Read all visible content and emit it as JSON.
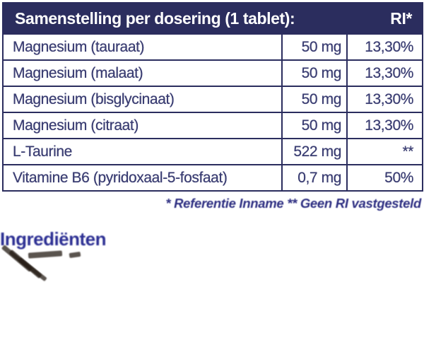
{
  "table": {
    "header": {
      "title": "Samenstelling per dosering (1 tablet):",
      "ri_label": "RI*"
    },
    "rows": [
      {
        "name": "Magnesium (tauraat)",
        "amount": "50 mg",
        "ri": "13,30%"
      },
      {
        "name": "Magnesium (malaat)",
        "amount": "50 mg",
        "ri": "13,30%"
      },
      {
        "name": "Magnesium (bisglycinaat)",
        "amount": "50 mg",
        "ri": "13,30%"
      },
      {
        "name": "Magnesium (citraat)",
        "amount": "50 mg",
        "ri": "13,30%"
      },
      {
        "name": "L-Taurine",
        "amount": "522 mg",
        "ri": "**"
      },
      {
        "name": "Vitamine B6 (pyridoxaal-5-fosfaat)",
        "amount": "0,7 mg",
        "ri": "50%"
      }
    ]
  },
  "footnote": "* Referentie Inname  ** Geen RI vastgesteld",
  "section_heading": "Ingrediënten",
  "colors": {
    "header_bg": "#2b2d5e",
    "border": "#2b2d5e",
    "row_text": "#3a3d72",
    "footnote_text": "#2e2f82",
    "heading_text": "#2c2f93"
  }
}
